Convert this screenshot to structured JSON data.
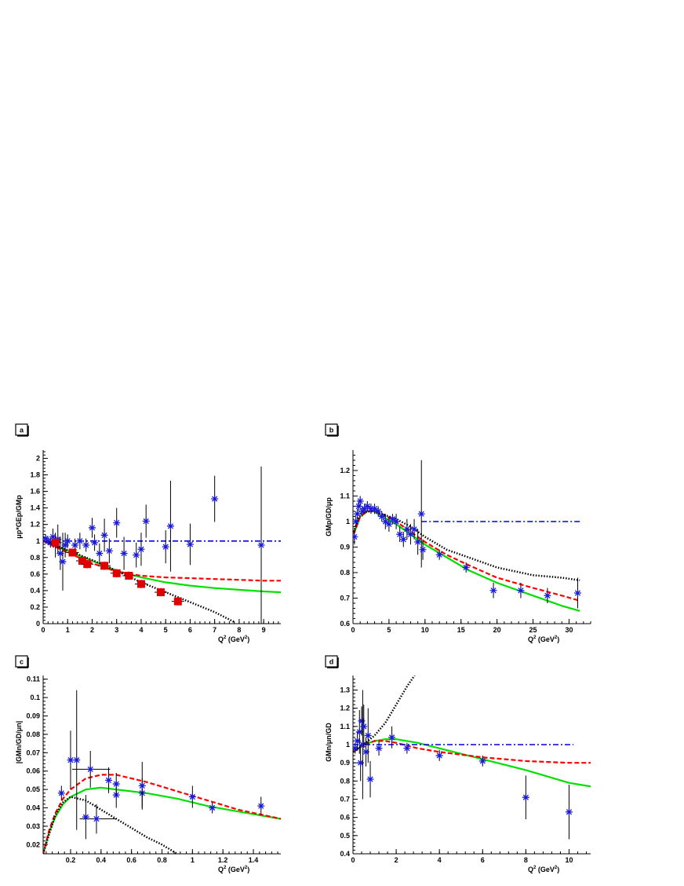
{
  "chart_data": [
    {
      "panel": "a",
      "type": "scatter",
      "xlabel": "Q",
      "xlabel_sup": "2",
      "xlabel_unit": " (GeV",
      "xlabel_unit_sup": "2",
      "xlabel_close": ")",
      "ylabel": "μp*GEp/GMp",
      "xlim": [
        0,
        9.7
      ],
      "ylim": [
        0,
        2.1
      ],
      "xticks": [
        0,
        1,
        2,
        3,
        4,
        5,
        6,
        7,
        8,
        9
      ],
      "yticks": [
        0,
        0.2,
        0.4,
        0.6,
        0.8,
        1,
        1.2,
        1.4,
        1.6,
        1.8,
        2
      ],
      "xtick_labels": [
        "0",
        "1",
        "2",
        "3",
        "4",
        "5",
        "6",
        "7",
        "8",
        "9"
      ],
      "ytick_labels": [
        "0",
        "0.2",
        "0.4",
        "0.6",
        "0.8",
        "1",
        "1.2",
        "1.4",
        "1.6",
        "1.8",
        "2"
      ],
      "stars": [
        [
          0.1,
          1.03,
          0.05
        ],
        [
          0.2,
          1.0,
          0.05
        ],
        [
          0.3,
          0.98,
          0.06
        ],
        [
          0.4,
          1.05,
          0.1
        ],
        [
          0.5,
          0.95,
          0.15
        ],
        [
          0.6,
          1.02,
          0.18
        ],
        [
          0.7,
          0.85,
          0.2
        ],
        [
          0.8,
          0.75,
          0.35
        ],
        [
          0.9,
          0.95,
          0.15
        ],
        [
          1.0,
          1.0,
          0.08
        ],
        [
          1.3,
          0.95,
          0.08
        ],
        [
          1.5,
          1.0,
          0.1
        ],
        [
          1.75,
          0.95,
          0.08
        ],
        [
          2.0,
          1.16,
          0.12
        ],
        [
          2.1,
          0.98,
          0.1
        ],
        [
          2.3,
          0.85,
          0.12
        ],
        [
          2.5,
          1.07,
          0.2
        ],
        [
          2.7,
          0.88,
          0.15
        ],
        [
          3.0,
          1.22,
          0.18
        ],
        [
          3.3,
          0.85,
          0.2
        ],
        [
          3.8,
          0.83,
          0.15
        ],
        [
          4.0,
          0.9,
          0.2
        ],
        [
          4.2,
          1.24,
          0.2
        ],
        [
          5.0,
          0.93,
          0.2
        ],
        [
          5.2,
          1.18,
          0.55
        ],
        [
          6.0,
          0.96,
          0.25
        ],
        [
          7.0,
          1.51,
          0.28
        ],
        [
          8.9,
          0.95,
          0.95
        ]
      ],
      "squares": [
        [
          0.5,
          0.98,
          0.03
        ],
        [
          1.2,
          0.86,
          0.03
        ],
        [
          1.6,
          0.76,
          0.04
        ],
        [
          1.8,
          0.72,
          0.05
        ],
        [
          2.5,
          0.7,
          0.05
        ],
        [
          3.0,
          0.61,
          0.05
        ],
        [
          3.5,
          0.58,
          0.05
        ],
        [
          4.0,
          0.48,
          0.05
        ],
        [
          4.8,
          0.38,
          0.05
        ],
        [
          5.5,
          0.27,
          0.05
        ]
      ],
      "curves": {
        "green": [
          [
            0,
            1.0
          ],
          [
            1,
            0.88
          ],
          [
            2,
            0.76
          ],
          [
            3,
            0.64
          ],
          [
            4,
            0.56
          ],
          [
            5,
            0.5
          ],
          [
            6,
            0.46
          ],
          [
            7,
            0.43
          ],
          [
            8,
            0.41
          ],
          [
            9,
            0.39
          ],
          [
            9.7,
            0.38
          ]
        ],
        "red": [
          [
            0,
            1.0
          ],
          [
            1,
            0.86
          ],
          [
            2,
            0.73
          ],
          [
            3,
            0.63
          ],
          [
            4,
            0.58
          ],
          [
            5,
            0.56
          ],
          [
            6,
            0.55
          ],
          [
            7,
            0.54
          ],
          [
            8,
            0.53
          ],
          [
            9,
            0.52
          ],
          [
            9.7,
            0.52
          ]
        ],
        "black": [
          [
            0,
            1.0
          ],
          [
            1,
            0.89
          ],
          [
            2,
            0.77
          ],
          [
            3,
            0.64
          ],
          [
            4,
            0.5
          ],
          [
            5,
            0.38
          ],
          [
            6,
            0.26
          ],
          [
            7,
            0.14
          ],
          [
            7.8,
            0.02
          ]
        ],
        "blue": [
          [
            0,
            1.0
          ],
          [
            9.7,
            1.0
          ]
        ]
      }
    },
    {
      "panel": "b",
      "type": "scatter",
      "xlabel": "Q",
      "xlabel_sup": "2",
      "xlabel_unit": " (GeV",
      "xlabel_unit_sup": "2",
      "xlabel_close": ")",
      "ylabel": "GMp/GD/μp",
      "xlim": [
        0,
        33
      ],
      "ylim": [
        0.6,
        1.28
      ],
      "xticks": [
        0,
        5,
        10,
        15,
        20,
        25,
        30
      ],
      "yticks": [
        0.6,
        0.7,
        0.8,
        0.9,
        1,
        1.1,
        1.2
      ],
      "xtick_labels": [
        "0",
        "5",
        "10",
        "15",
        "20",
        "25",
        "30"
      ],
      "ytick_labels": [
        "0.6",
        "0.7",
        "0.8",
        "0.9",
        "1",
        "1.1",
        "1.2"
      ],
      "stars": [
        [
          0.2,
          0.94,
          0.03
        ],
        [
          0.4,
          1.0,
          0.02
        ],
        [
          0.6,
          1.03,
          0.02
        ],
        [
          0.8,
          1.06,
          0.02
        ],
        [
          1.0,
          1.08,
          0.02
        ],
        [
          1.3,
          1.04,
          0.02
        ],
        [
          1.6,
          1.05,
          0.02
        ],
        [
          2.0,
          1.06,
          0.02
        ],
        [
          2.5,
          1.05,
          0.02
        ],
        [
          3.0,
          1.05,
          0.02
        ],
        [
          3.5,
          1.04,
          0.02
        ],
        [
          4.0,
          1.02,
          0.02
        ],
        [
          4.5,
          1.0,
          0.03
        ],
        [
          5.0,
          0.99,
          0.03
        ],
        [
          5.5,
          1.01,
          0.02
        ],
        [
          6.0,
          1.0,
          0.03
        ],
        [
          6.5,
          0.95,
          0.03
        ],
        [
          7.0,
          0.93,
          0.03
        ],
        [
          7.5,
          0.97,
          0.04
        ],
        [
          8.0,
          0.95,
          0.04
        ],
        [
          8.5,
          0.97,
          0.04
        ],
        [
          9.0,
          0.92,
          0.05
        ],
        [
          9.5,
          1.03,
          0.21
        ],
        [
          9.7,
          0.89,
          0.04
        ],
        [
          12.0,
          0.87,
          0.02
        ],
        [
          15.7,
          0.82,
          0.02
        ],
        [
          19.5,
          0.73,
          0.03
        ],
        [
          23.3,
          0.73,
          0.03
        ],
        [
          27.0,
          0.71,
          0.03
        ],
        [
          31.2,
          0.72,
          0.06
        ]
      ],
      "curves": {
        "green": [
          [
            0.1,
            0.95
          ],
          [
            1,
            1.02
          ],
          [
            2,
            1.04
          ],
          [
            3,
            1.04
          ],
          [
            4,
            1.02
          ],
          [
            6,
            0.99
          ],
          [
            8,
            0.95
          ],
          [
            10,
            0.91
          ],
          [
            13,
            0.86
          ],
          [
            16,
            0.81
          ],
          [
            20,
            0.76
          ],
          [
            25,
            0.71
          ],
          [
            29,
            0.67
          ],
          [
            31.5,
            0.65
          ]
        ],
        "red": [
          [
            0.1,
            0.95
          ],
          [
            1,
            1.02
          ],
          [
            2,
            1.04
          ],
          [
            3,
            1.04
          ],
          [
            4,
            1.03
          ],
          [
            6,
            1.0
          ],
          [
            8,
            0.96
          ],
          [
            10,
            0.92
          ],
          [
            13,
            0.87
          ],
          [
            16,
            0.83
          ],
          [
            20,
            0.78
          ],
          [
            25,
            0.74
          ],
          [
            29,
            0.71
          ],
          [
            31.5,
            0.69
          ]
        ],
        "black": [
          [
            0.1,
            0.96
          ],
          [
            1,
            1.03
          ],
          [
            2,
            1.04
          ],
          [
            3,
            1.04
          ],
          [
            4,
            1.03
          ],
          [
            6,
            1.01
          ],
          [
            8,
            0.98
          ],
          [
            10,
            0.94
          ],
          [
            13,
            0.89
          ],
          [
            16,
            0.86
          ],
          [
            20,
            0.82
          ],
          [
            25,
            0.79
          ],
          [
            29,
            0.78
          ],
          [
            31.5,
            0.77
          ]
        ],
        "blue": [
          [
            9.5,
            1.0
          ],
          [
            31.5,
            1.0
          ]
        ]
      }
    },
    {
      "panel": "c",
      "type": "scatter",
      "xlabel": "Q",
      "xlabel_sup": "2",
      "xlabel_unit": " (GeV",
      "xlabel_unit_sup": "2",
      "xlabel_close": ")",
      "ylabel": "|GMn/GD/μn|",
      "xlim": [
        0.02,
        1.58
      ],
      "ylim": [
        0.015,
        0.112
      ],
      "xticks": [
        0.2,
        0.4,
        0.6,
        0.8,
        1,
        1.2,
        1.4
      ],
      "yticks": [
        0.02,
        0.03,
        0.04,
        0.05,
        0.06,
        0.07,
        0.08,
        0.09,
        0.1,
        0.11
      ],
      "xtick_labels": [
        "0.2",
        "0.4",
        "0.6",
        "0.8",
        "1",
        "1.2",
        "1.4"
      ],
      "ytick_labels": [
        "0.02",
        "0.03",
        "0.04",
        "0.05",
        "0.06",
        "0.07",
        "0.08",
        "0.09",
        "0.1",
        "0.11"
      ],
      "stars": [
        [
          0.14,
          0.048,
          0.004
        ],
        [
          0.2,
          0.066,
          0.016
        ],
        [
          0.24,
          0.066,
          0.038
        ],
        [
          0.3,
          0.035,
          0.012
        ],
        [
          0.33,
          0.061,
          0.01
        ],
        [
          0.37,
          0.034,
          0.008
        ],
        [
          0.45,
          0.055,
          0.007
        ],
        [
          0.5,
          0.047,
          0.007
        ],
        [
          0.5,
          0.053,
          0.006
        ],
        [
          0.67,
          0.048,
          0.008
        ],
        [
          0.67,
          0.052,
          0.013
        ],
        [
          1.0,
          0.046,
          0.006
        ],
        [
          1.13,
          0.04,
          0.003
        ],
        [
          1.45,
          0.041,
          0.005
        ]
      ],
      "xerrs": [
        [
          0.21,
          0.061,
          0.46
        ],
        [
          0.26,
          0.034,
          0.5
        ]
      ],
      "curves": {
        "green": [
          [
            0.02,
            0.015
          ],
          [
            0.06,
            0.027
          ],
          [
            0.1,
            0.035
          ],
          [
            0.15,
            0.042
          ],
          [
            0.2,
            0.046
          ],
          [
            0.3,
            0.05
          ],
          [
            0.4,
            0.051
          ],
          [
            0.5,
            0.05
          ],
          [
            0.7,
            0.048
          ],
          [
            0.9,
            0.045
          ],
          [
            1.1,
            0.041
          ],
          [
            1.3,
            0.038
          ],
          [
            1.58,
            0.034
          ]
        ],
        "red": [
          [
            0.02,
            0.015
          ],
          [
            0.06,
            0.028
          ],
          [
            0.1,
            0.037
          ],
          [
            0.15,
            0.045
          ],
          [
            0.2,
            0.05
          ],
          [
            0.3,
            0.056
          ],
          [
            0.4,
            0.058
          ],
          [
            0.5,
            0.058
          ],
          [
            0.7,
            0.054
          ],
          [
            0.9,
            0.049
          ],
          [
            1.1,
            0.044
          ],
          [
            1.3,
            0.039
          ],
          [
            1.58,
            0.034
          ]
        ],
        "black": [
          [
            0.02,
            0.015
          ],
          [
            0.06,
            0.026
          ],
          [
            0.1,
            0.036
          ],
          [
            0.15,
            0.043
          ],
          [
            0.2,
            0.046
          ],
          [
            0.3,
            0.044
          ],
          [
            0.4,
            0.039
          ],
          [
            0.5,
            0.034
          ],
          [
            0.6,
            0.029
          ],
          [
            0.7,
            0.024
          ],
          [
            0.8,
            0.02
          ],
          [
            0.9,
            0.015
          ]
        ]
      }
    },
    {
      "panel": "d",
      "type": "scatter",
      "xlabel": "Q",
      "xlabel_sup": "2",
      "xlabel_unit": " (GeV",
      "xlabel_unit_sup": "2",
      "xlabel_close": ")",
      "ylabel": "GMn/μn/GD",
      "xlim": [
        0,
        11
      ],
      "ylim": [
        0.4,
        1.38
      ],
      "xticks": [
        0,
        2,
        4,
        6,
        8,
        10
      ],
      "yticks": [
        0.4,
        0.5,
        0.6,
        0.7,
        0.8,
        0.9,
        1,
        1.1,
        1.2,
        1.3
      ],
      "xtick_labels": [
        "0",
        "2",
        "4",
        "6",
        "8",
        "10"
      ],
      "ytick_labels": [
        "0.4",
        "0.5",
        "0.6",
        "0.7",
        "0.8",
        "0.9",
        "1",
        "1.1",
        "1.2",
        "1.3"
      ],
      "stars": [
        [
          0.1,
          0.98,
          0.03
        ],
        [
          0.2,
          1.02,
          0.05
        ],
        [
          0.3,
          1.07,
          0.12
        ],
        [
          0.35,
          0.9,
          0.1
        ],
        [
          0.4,
          1.13,
          0.08
        ],
        [
          0.45,
          1.0,
          0.3
        ],
        [
          0.5,
          1.1,
          0.12
        ],
        [
          0.6,
          0.96,
          0.08
        ],
        [
          0.7,
          1.05,
          0.15
        ],
        [
          0.8,
          0.81,
          0.1
        ],
        [
          1.2,
          0.98,
          0.04
        ],
        [
          1.8,
          1.04,
          0.06
        ],
        [
          2.5,
          0.98,
          0.03
        ],
        [
          4.0,
          0.94,
          0.03
        ],
        [
          6.0,
          0.91,
          0.03
        ],
        [
          8.0,
          0.71,
          0.12
        ],
        [
          10.0,
          0.63,
          0.15
        ]
      ],
      "curves": {
        "green": [
          [
            0,
            0.96
          ],
          [
            0.5,
            1.0
          ],
          [
            1,
            1.02
          ],
          [
            1.5,
            1.03
          ],
          [
            2,
            1.03
          ],
          [
            3,
            1.01
          ],
          [
            4,
            0.98
          ],
          [
            6,
            0.92
          ],
          [
            8,
            0.86
          ],
          [
            10,
            0.79
          ],
          [
            11,
            0.77
          ]
        ],
        "red": [
          [
            0,
            0.96
          ],
          [
            0.5,
            1.0
          ],
          [
            1,
            1.02
          ],
          [
            1.5,
            1.02
          ],
          [
            2,
            1.01
          ],
          [
            3,
            0.98
          ],
          [
            4,
            0.96
          ],
          [
            6,
            0.93
          ],
          [
            8,
            0.91
          ],
          [
            10,
            0.9
          ],
          [
            11,
            0.9
          ]
        ],
        "black": [
          [
            0,
            0.96
          ],
          [
            0.5,
            1.0
          ],
          [
            1,
            1.05
          ],
          [
            1.5,
            1.12
          ],
          [
            2,
            1.22
          ],
          [
            2.5,
            1.32
          ],
          [
            2.85,
            1.38
          ]
        ],
        "blue": [
          [
            0,
            1.0
          ],
          [
            10.2,
            1.0
          ]
        ]
      }
    }
  ]
}
